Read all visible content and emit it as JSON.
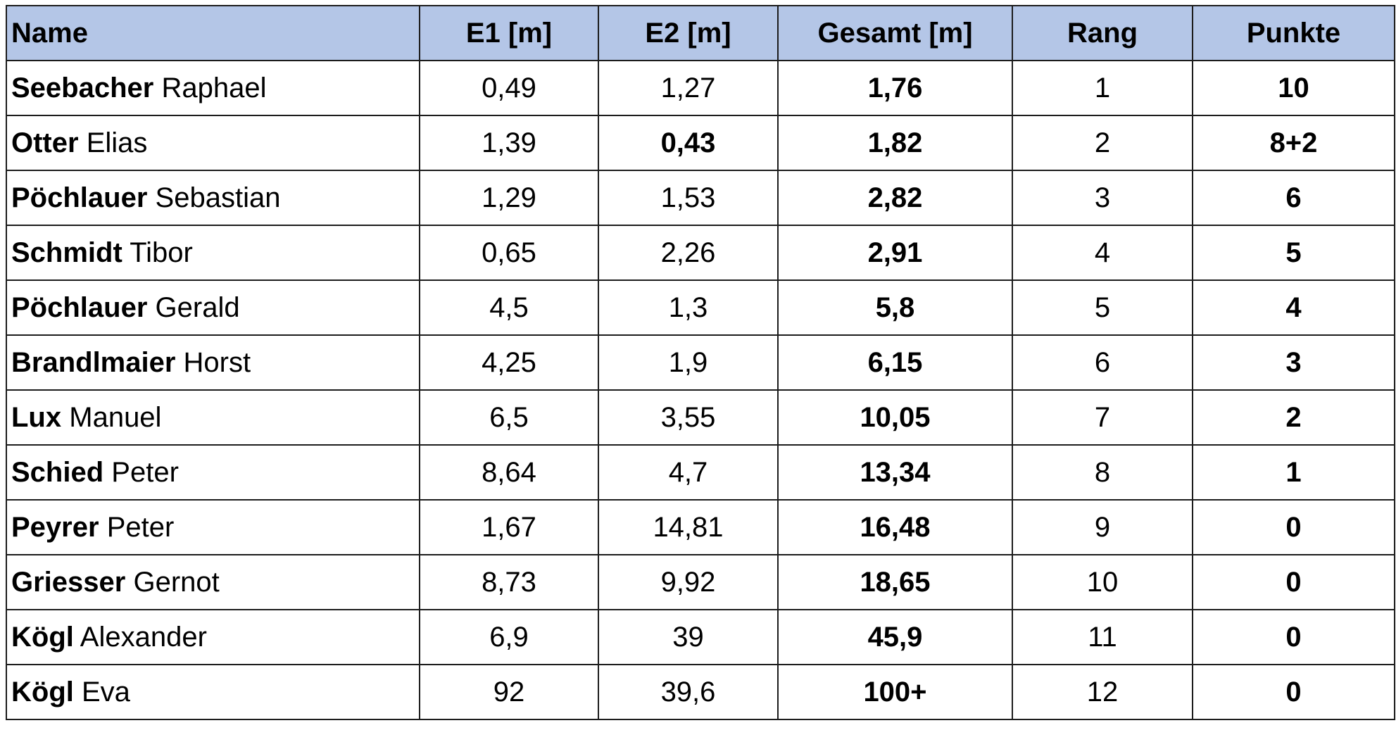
{
  "table": {
    "headers": {
      "name": "Name",
      "e1": "E1 [m]",
      "e2": "E2 [m]",
      "gesamt": "Gesamt [m]",
      "rang": "Rang",
      "punkte": "Punkte"
    },
    "rows": [
      {
        "surname": "Seebacher",
        "firstname": "Raphael",
        "e1": "0,49",
        "e2": "1,27",
        "e2_bold": false,
        "gesamt": "1,76",
        "rang": "1",
        "punkte": "10"
      },
      {
        "surname": "Otter",
        "firstname": "Elias",
        "e1": "1,39",
        "e2": "0,43",
        "e2_bold": true,
        "gesamt": "1,82",
        "rang": "2",
        "punkte": "8+2"
      },
      {
        "surname": "Pöchlauer",
        "firstname": "Sebastian",
        "e1": "1,29",
        "e2": "1,53",
        "e2_bold": false,
        "gesamt": "2,82",
        "rang": "3",
        "punkte": "6"
      },
      {
        "surname": "Schmidt",
        "firstname": "Tibor",
        "e1": "0,65",
        "e2": "2,26",
        "e2_bold": false,
        "gesamt": "2,91",
        "rang": "4",
        "punkte": "5"
      },
      {
        "surname": "Pöchlauer",
        "firstname": "Gerald",
        "e1": "4,5",
        "e2": "1,3",
        "e2_bold": false,
        "gesamt": "5,8",
        "rang": "5",
        "punkte": "4"
      },
      {
        "surname": "Brandlmaier",
        "firstname": "Horst",
        "e1": "4,25",
        "e2": "1,9",
        "e2_bold": false,
        "gesamt": "6,15",
        "rang": "6",
        "punkte": "3"
      },
      {
        "surname": "Lux",
        "firstname": "Manuel",
        "e1": "6,5",
        "e2": "3,55",
        "e2_bold": false,
        "gesamt": "10,05",
        "rang": "7",
        "punkte": "2"
      },
      {
        "surname": "Schied",
        "firstname": "Peter",
        "e1": "8,64",
        "e2": "4,7",
        "e2_bold": false,
        "gesamt": "13,34",
        "rang": "8",
        "punkte": "1"
      },
      {
        "surname": "Peyrer",
        "firstname": "Peter",
        "e1": "1,67",
        "e2": "14,81",
        "e2_bold": false,
        "gesamt": "16,48",
        "rang": "9",
        "punkte": "0"
      },
      {
        "surname": "Griesser",
        "firstname": "Gernot",
        "e1": "8,73",
        "e2": "9,92",
        "e2_bold": false,
        "gesamt": "18,65",
        "rang": "10",
        "punkte": "0"
      },
      {
        "surname": "Kögl",
        "firstname": "Alexander",
        "e1": "6,9",
        "e2": "39",
        "e2_bold": false,
        "gesamt": "45,9",
        "rang": "11",
        "punkte": "0"
      },
      {
        "surname": "Kögl",
        "firstname": "Eva",
        "e1": "92",
        "e2": "39,6",
        "e2_bold": false,
        "gesamt": "100+",
        "rang": "12",
        "punkte": "0"
      }
    ]
  }
}
